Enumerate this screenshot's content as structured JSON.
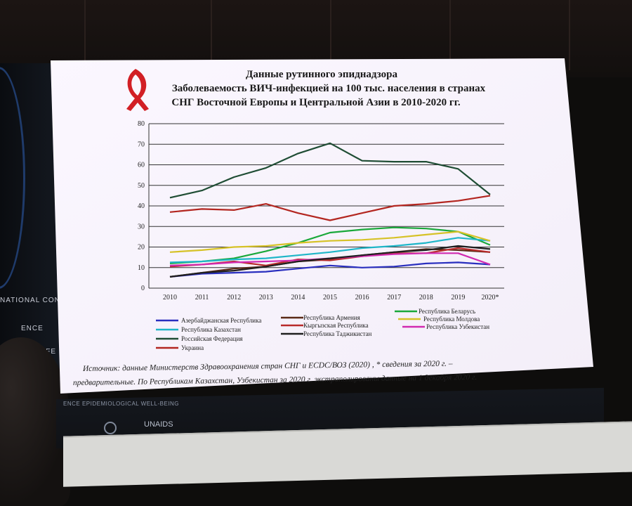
{
  "slide": {
    "title_lines": [
      "Данные рутинного эпиднадзора",
      "Заболеваемость ВИЧ-инфекцией на 100 тыс. населения в странах",
      "СНГ Восточной Европы и Центральной Азии в 2010-2020 гг."
    ],
    "source_lines": [
      "Источник: данные Министерств Здравоохранения стран СНГ и ECDC/ВОЗ (2020) , * сведения за 2020 г. –",
      "предварительные. По Республикам Казахстан, Узбекистан за 2020 г. экстраполированы данные на 1 декабря 2020 г."
    ],
    "ribbon_icon": "red-ribbon-icon"
  },
  "room": {
    "banner_left_1": "NATIONAL CONFE",
    "banner_left_2": "ENCE",
    "banner_left_3": "CONFE",
    "bottom_strip": "ENCE EPIDEMIOLOGICAL WELL-BEING",
    "logo_text": "UNAIDS"
  },
  "chart_data": {
    "type": "line",
    "x": [
      "2010",
      "2011",
      "2012",
      "2013",
      "2014",
      "2015",
      "2016",
      "2017",
      "2018",
      "2019",
      "2020*"
    ],
    "ylim": [
      0,
      80
    ],
    "yticks": [
      0,
      10,
      20,
      30,
      40,
      50,
      60,
      70,
      80
    ],
    "grid": true,
    "legend_position": "bottom",
    "series": [
      {
        "name": "Азербайджанская Республика",
        "color": "#2a2fbf",
        "values": [
          5.5,
          7,
          7.5,
          8,
          9.5,
          11,
          10,
          10.5,
          12,
          12.5,
          11.5
        ]
      },
      {
        "name": "Республика Армения",
        "color": "#5a2a16",
        "values": [
          5.5,
          7.5,
          9.5,
          10.5,
          13,
          14,
          16,
          17.5,
          19,
          18.5,
          17.5
        ]
      },
      {
        "name": "Республика Беларусь",
        "color": "#1aa83a",
        "values": [
          12,
          13,
          14.5,
          18,
          22,
          27,
          28.5,
          29.5,
          29,
          27.5,
          21
        ]
      },
      {
        "name": "Республика Казахстан",
        "color": "#1fb6c8",
        "values": [
          12.5,
          13,
          14,
          14.5,
          16,
          17.5,
          19.5,
          20.5,
          22,
          24.5,
          23
        ]
      },
      {
        "name": "Кыргызская Республика",
        "color": "#b82a2a",
        "values": [
          10.5,
          11.5,
          13,
          11,
          14,
          13.5,
          15.5,
          17,
          17,
          19.5,
          17.5
        ]
      },
      {
        "name": "Республика Молдова",
        "color": "#d6c227",
        "values": [
          17.5,
          18.5,
          20,
          20.5,
          22,
          23,
          23.5,
          24.5,
          26,
          27.5,
          23
        ]
      },
      {
        "name": "Республика Узбекистан",
        "color": "#d12ab0",
        "values": [
          11,
          11.5,
          12.5,
          13,
          13.5,
          14.5,
          15.5,
          16.5,
          17,
          17,
          11.5
        ]
      },
      {
        "name": "Российская Федерация",
        "color": "#1f4d34",
        "values": [
          44,
          47.5,
          54,
          58.5,
          65.5,
          70.5,
          62,
          61.5,
          61.5,
          58,
          45.5
        ]
      },
      {
        "name": "Республика Таджикистан",
        "color": "#1f1f1f",
        "values": [
          5.5,
          7.5,
          8.5,
          10.5,
          13,
          14.5,
          16,
          17.5,
          18.5,
          20.5,
          19
        ]
      },
      {
        "name": "Украина",
        "color": "#b32620",
        "values": [
          37,
          38.5,
          38,
          41,
          36.5,
          33,
          36.5,
          40,
          41,
          42.5,
          45
        ]
      }
    ]
  }
}
